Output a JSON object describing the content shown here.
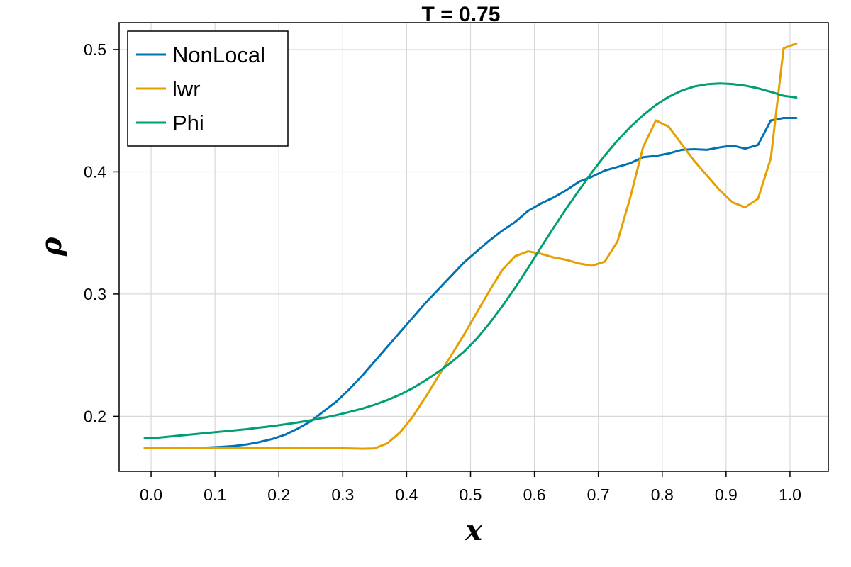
{
  "chart_data": {
    "type": "line",
    "title": "T = 0.75",
    "xlabel": "x",
    "ylabel": "ρ",
    "xlim": [
      -0.05,
      1.06
    ],
    "ylim": [
      0.155,
      0.522
    ],
    "grid": true,
    "legend_position": "top-left",
    "xticks": [
      0.0,
      0.1,
      0.2,
      0.3,
      0.4,
      0.5,
      0.6,
      0.7,
      0.8,
      0.9,
      1.0
    ],
    "xtick_labels": [
      "0.0",
      "0.1",
      "0.2",
      "0.3",
      "0.4",
      "0.5",
      "0.6",
      "0.7",
      "0.8",
      "0.9",
      "1.0"
    ],
    "yticks": [
      0.2,
      0.3,
      0.4,
      0.5
    ],
    "ytick_labels": [
      "0.2",
      "0.3",
      "0.4",
      "0.5"
    ],
    "series": [
      {
        "name": "NonLocal",
        "color": "#0072b2",
        "x": [
          -0.01,
          0.01,
          0.03,
          0.05,
          0.07,
          0.09,
          0.11,
          0.13,
          0.15,
          0.17,
          0.19,
          0.21,
          0.23,
          0.25,
          0.27,
          0.29,
          0.31,
          0.33,
          0.35,
          0.37,
          0.39,
          0.41,
          0.43,
          0.45,
          0.47,
          0.49,
          0.51,
          0.53,
          0.55,
          0.57,
          0.59,
          0.61,
          0.63,
          0.65,
          0.67,
          0.69,
          0.71,
          0.73,
          0.75,
          0.77,
          0.79,
          0.81,
          0.83,
          0.85,
          0.87,
          0.89,
          0.91,
          0.93,
          0.95,
          0.97,
          0.99,
          1.01
        ],
        "y": [
          0.174,
          0.174,
          0.174,
          0.174,
          0.1742,
          0.1745,
          0.175,
          0.1757,
          0.177,
          0.179,
          0.1815,
          0.185,
          0.19,
          0.196,
          0.204,
          0.212,
          0.222,
          0.233,
          0.245,
          0.257,
          0.269,
          0.281,
          0.293,
          0.304,
          0.315,
          0.326,
          0.335,
          0.344,
          0.352,
          0.359,
          0.368,
          0.374,
          0.379,
          0.385,
          0.392,
          0.396,
          0.401,
          0.404,
          0.407,
          0.412,
          0.413,
          0.415,
          0.418,
          0.4185,
          0.418,
          0.42,
          0.4215,
          0.419,
          0.422,
          0.442,
          0.444,
          0.444
        ]
      },
      {
        "name": "lwr",
        "color": "#e69f00",
        "x": [
          -0.01,
          0.01,
          0.03,
          0.05,
          0.07,
          0.09,
          0.11,
          0.13,
          0.15,
          0.17,
          0.19,
          0.21,
          0.23,
          0.25,
          0.27,
          0.29,
          0.31,
          0.33,
          0.35,
          0.37,
          0.39,
          0.41,
          0.43,
          0.45,
          0.47,
          0.49,
          0.51,
          0.53,
          0.55,
          0.57,
          0.59,
          0.61,
          0.63,
          0.65,
          0.67,
          0.69,
          0.71,
          0.73,
          0.75,
          0.77,
          0.79,
          0.81,
          0.83,
          0.85,
          0.87,
          0.89,
          0.91,
          0.93,
          0.95,
          0.97,
          0.99,
          1.01
        ],
        "y": [
          0.174,
          0.174,
          0.174,
          0.174,
          0.174,
          0.174,
          0.174,
          0.174,
          0.174,
          0.174,
          0.174,
          0.174,
          0.174,
          0.174,
          0.174,
          0.174,
          0.1738,
          0.1735,
          0.1738,
          0.178,
          0.187,
          0.2,
          0.216,
          0.233,
          0.25,
          0.267,
          0.285,
          0.303,
          0.32,
          0.331,
          0.335,
          0.333,
          0.33,
          0.328,
          0.325,
          0.3232,
          0.3265,
          0.343,
          0.379,
          0.42,
          0.442,
          0.437,
          0.423,
          0.409,
          0.397,
          0.385,
          0.375,
          0.371,
          0.378,
          0.411,
          0.501,
          0.505
        ]
      },
      {
        "name": "Phi",
        "color": "#009e73",
        "x": [
          -0.01,
          0.01,
          0.03,
          0.05,
          0.07,
          0.09,
          0.11,
          0.13,
          0.15,
          0.17,
          0.19,
          0.21,
          0.23,
          0.25,
          0.27,
          0.29,
          0.31,
          0.33,
          0.35,
          0.37,
          0.39,
          0.41,
          0.43,
          0.45,
          0.47,
          0.49,
          0.51,
          0.53,
          0.55,
          0.57,
          0.59,
          0.61,
          0.63,
          0.65,
          0.67,
          0.69,
          0.71,
          0.73,
          0.75,
          0.77,
          0.79,
          0.81,
          0.83,
          0.85,
          0.87,
          0.89,
          0.91,
          0.93,
          0.95,
          0.97,
          0.99,
          1.01
        ],
        "y": [
          0.182,
          0.1825,
          0.1835,
          0.1845,
          0.1855,
          0.1865,
          0.1875,
          0.1885,
          0.1895,
          0.1908,
          0.192,
          0.1935,
          0.195,
          0.1968,
          0.1988,
          0.201,
          0.2035,
          0.2062,
          0.2095,
          0.2133,
          0.2178,
          0.2232,
          0.2295,
          0.2365,
          0.2443,
          0.253,
          0.2636,
          0.2763,
          0.2903,
          0.3053,
          0.3213,
          0.338,
          0.3543,
          0.37,
          0.385,
          0.3996,
          0.4133,
          0.4256,
          0.4366,
          0.4463,
          0.4546,
          0.4613,
          0.4663,
          0.4698,
          0.4716,
          0.4723,
          0.4718,
          0.4705,
          0.4683,
          0.4654,
          0.4622,
          0.4608
        ]
      }
    ]
  }
}
